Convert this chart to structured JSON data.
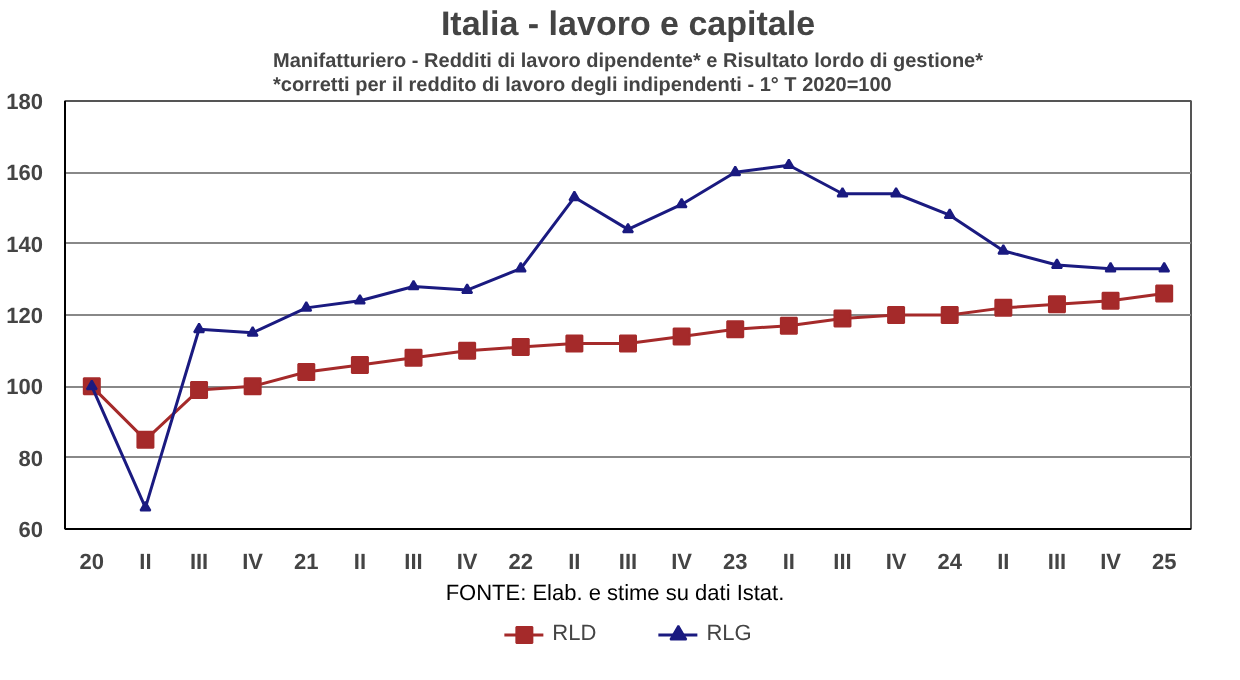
{
  "chart_data": {
    "type": "line",
    "title": "Italia - lavoro e capitale",
    "subtitle": "Manifatturiero - Redditi di lavoro dipendente* e Risultato lordo di gestione*\n*corretti per il reddito di lavoro degli indipendenti - 1° T 2020=100",
    "categories": [
      "20",
      "II",
      "III",
      "IV",
      "21",
      "II",
      "III",
      "IV",
      "22",
      "II",
      "III",
      "IV",
      "23",
      "II",
      "III",
      "IV",
      "24",
      "II",
      "III",
      "IV",
      "25"
    ],
    "series": [
      {
        "name": "RLD",
        "color": "#a52a2a",
        "marker": "square",
        "values": [
          100,
          85,
          99,
          100,
          104,
          106,
          108,
          110,
          111,
          112,
          112,
          114,
          116,
          117,
          119,
          120,
          120,
          122,
          123,
          124,
          126
        ]
      },
      {
        "name": "RLG",
        "color": "#1a1a80",
        "marker": "triangle",
        "values": [
          100,
          66,
          116,
          115,
          122,
          124,
          128,
          127,
          133,
          153,
          144,
          151,
          160,
          162,
          154,
          154,
          148,
          138,
          134,
          133,
          133
        ]
      }
    ],
    "ylim": [
      60,
      180
    ],
    "yticks": [
      60,
      80,
      100,
      120,
      140,
      160,
      180
    ],
    "grid": "y",
    "legend": "bottom",
    "line_style": "solid",
    "annotations": [
      "FONTE: Elab. e stime su dati Istat."
    ]
  }
}
